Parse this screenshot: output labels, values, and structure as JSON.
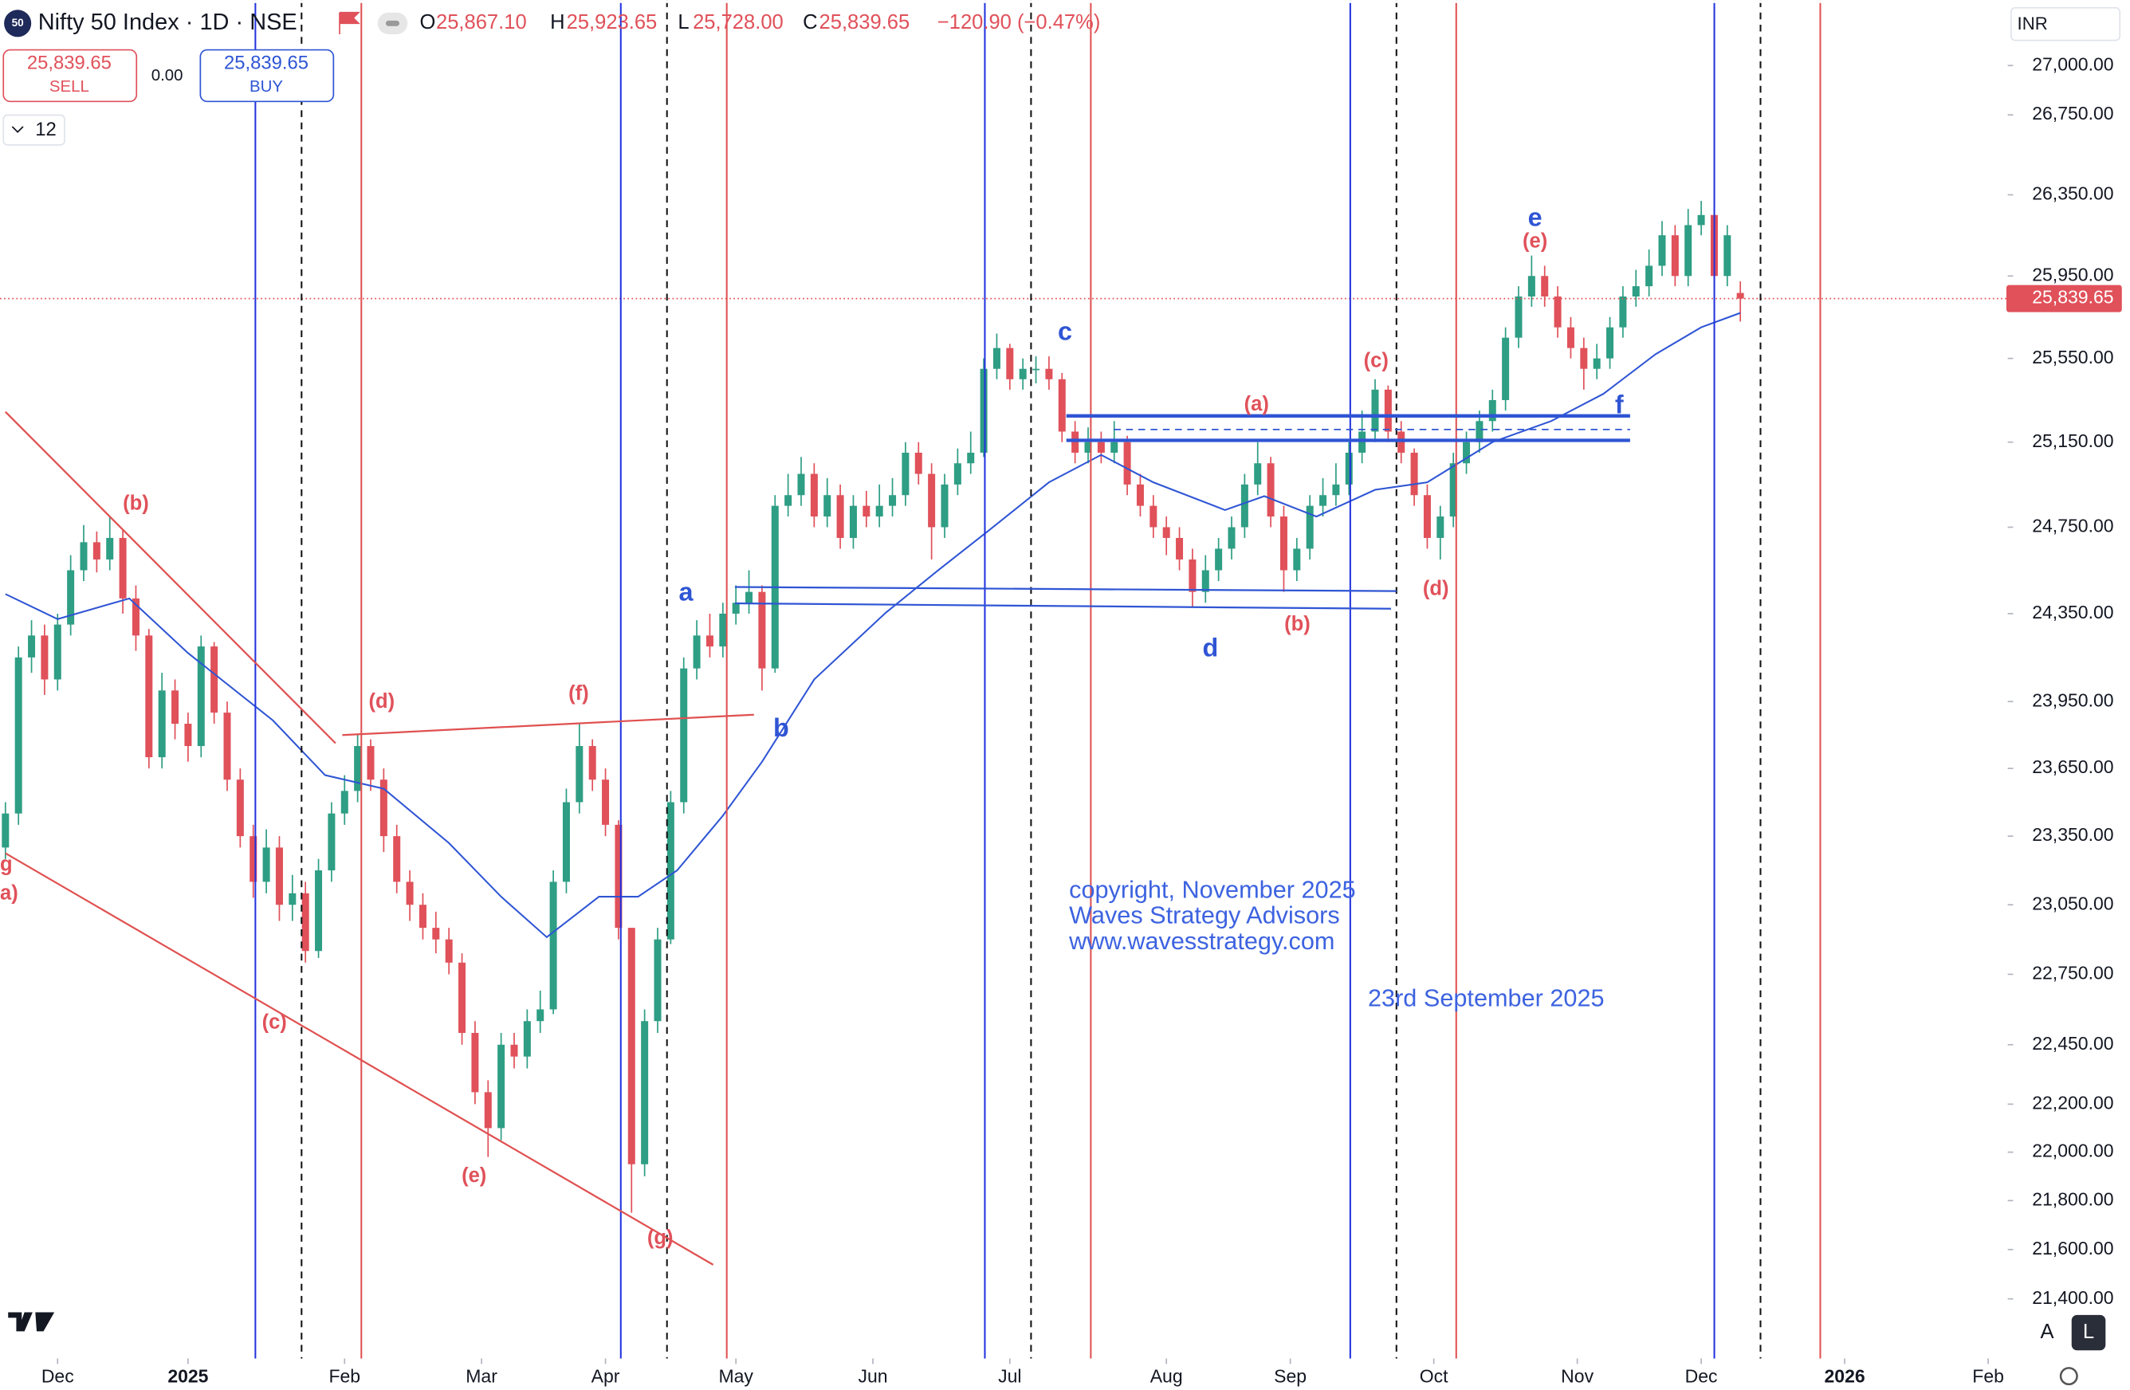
{
  "header": {
    "badge": "50",
    "symbol": "Nifty 50 Index · 1D · NSE",
    "ohlc_labels": [
      "O",
      "H",
      "L",
      "C"
    ],
    "ohlc_values": [
      "25,867.10",
      "25,923.65",
      "25,728.00",
      "25,839.65"
    ],
    "change": "−120.90 (−0.47%)"
  },
  "trade_panel": {
    "sell_price": "25,839.65",
    "sell": "SELL",
    "spread": "0.00",
    "buy_price": "25,839.65",
    "buy": "BUY",
    "interval": "12"
  },
  "currency": "INR",
  "scale_buttons": [
    "A",
    "L"
  ],
  "wave_labels_red": [
    "(b)",
    "(d)",
    "(f)",
    "(c)",
    "(e)",
    "(g)",
    "g",
    "a)",
    "(a)",
    "(b)",
    "(c)",
    "(d)",
    "(e)"
  ],
  "wave_labels_blue": [
    "a",
    "b",
    "c",
    "d",
    "e",
    "f"
  ],
  "copyright": [
    "copyright, November 2025",
    "Waves Strategy Advisors",
    "www.wavesstrategy.com"
  ],
  "date_note": "23rd September 2025",
  "chart_data": {
    "type": "candlestick",
    "log_scale": true,
    "grid": false,
    "up_color": "#2e9e84",
    "down_color": "#e0515a",
    "ylim": [
      21161,
      27334
    ],
    "yticks": [
      {
        "value": 27000,
        "label": "27,000.00"
      },
      {
        "value": 26750,
        "label": "26,750.00"
      },
      {
        "value": 26350,
        "label": "26,350.00"
      },
      {
        "value": 25950,
        "label": "25,950.00"
      },
      {
        "value": 25550,
        "label": "25,550.00"
      },
      {
        "value": 25150,
        "label": "25,150.00"
      },
      {
        "value": 24750,
        "label": "24,750.00"
      },
      {
        "value": 24350,
        "label": "24,350.00"
      },
      {
        "value": 23950,
        "label": "23,950.00"
      },
      {
        "value": 23650,
        "label": "23,650.00"
      },
      {
        "value": 23350,
        "label": "23,350.00"
      },
      {
        "value": 23050,
        "label": "23,050.00"
      },
      {
        "value": 22750,
        "label": "22,750.00"
      },
      {
        "value": 22450,
        "label": "22,450.00"
      },
      {
        "value": 22200,
        "label": "22,200.00"
      },
      {
        "value": 22000,
        "label": "22,000.00"
      },
      {
        "value": 21800,
        "label": "21,800.00"
      },
      {
        "value": 21600,
        "label": "21,600.00"
      },
      {
        "value": 21400,
        "label": "21,400.00"
      }
    ],
    "xlim": [
      0,
      307
    ],
    "xticks": [
      {
        "value": 8,
        "label": "Dec"
      },
      {
        "value": 28,
        "label": "2025"
      },
      {
        "value": 52,
        "label": "Feb"
      },
      {
        "value": 73,
        "label": "Mar"
      },
      {
        "value": 92,
        "label": "Apr"
      },
      {
        "value": 112,
        "label": "May"
      },
      {
        "value": 133,
        "label": "Jun"
      },
      {
        "value": 154,
        "label": "Jul"
      },
      {
        "value": 178,
        "label": "Aug"
      },
      {
        "value": 197,
        "label": "Sep"
      },
      {
        "value": 219,
        "label": "Oct"
      },
      {
        "value": 241,
        "label": "Nov"
      },
      {
        "value": 260,
        "label": "Dec"
      },
      {
        "value": 282,
        "label": "2026"
      },
      {
        "value": 304,
        "label": "Feb"
      }
    ],
    "x": [
      0,
      2,
      4,
      6,
      8,
      10,
      12,
      14,
      16,
      18,
      20,
      22,
      24,
      26,
      28,
      30,
      32,
      34,
      36,
      38,
      40,
      42,
      44,
      46,
      48,
      50,
      52,
      54,
      56,
      58,
      60,
      62,
      64,
      66,
      68,
      70,
      72,
      74,
      76,
      78,
      80,
      82,
      84,
      86,
      88,
      90,
      92,
      94,
      96,
      98,
      100,
      102,
      104,
      106,
      108,
      110,
      112,
      114,
      116,
      118,
      120,
      122,
      124,
      126,
      128,
      130,
      132,
      134,
      136,
      138,
      140,
      142,
      144,
      146,
      148,
      150,
      152,
      154,
      156,
      158,
      160,
      162,
      164,
      166,
      168,
      170,
      172,
      174,
      176,
      178,
      180,
      182,
      184,
      186,
      188,
      190,
      192,
      194,
      196,
      198,
      200,
      202,
      204,
      206,
      208,
      210,
      212,
      214,
      216,
      218,
      220,
      222,
      224,
      226,
      228,
      230,
      232,
      234,
      236,
      238,
      240,
      242,
      244,
      246,
      248,
      250,
      252,
      254,
      256,
      258,
      260,
      262,
      264,
      266
    ],
    "ohlc": [
      [
        23300,
        23500,
        23250,
        23450
      ],
      [
        23450,
        24200,
        23400,
        24150
      ],
      [
        24150,
        24320,
        24080,
        24250
      ],
      [
        24250,
        24300,
        23980,
        24050
      ],
      [
        24050,
        24350,
        24000,
        24300
      ],
      [
        24300,
        24620,
        24250,
        24550
      ],
      [
        24550,
        24760,
        24500,
        24680
      ],
      [
        24680,
        24730,
        24540,
        24600
      ],
      [
        24600,
        24800,
        24550,
        24700
      ],
      [
        24700,
        24740,
        24350,
        24420
      ],
      [
        24420,
        24480,
        24180,
        24250
      ],
      [
        24250,
        24280,
        23650,
        23700
      ],
      [
        23700,
        24080,
        23650,
        24000
      ],
      [
        24000,
        24050,
        23780,
        23850
      ],
      [
        23850,
        23900,
        23680,
        23750
      ],
      [
        23750,
        24250,
        23700,
        24200
      ],
      [
        24200,
        24220,
        23850,
        23900
      ],
      [
        23900,
        23950,
        23550,
        23600
      ],
      [
        23600,
        23650,
        23300,
        23350
      ],
      [
        23350,
        23400,
        23080,
        23150
      ],
      [
        23150,
        23380,
        23100,
        23300
      ],
      [
        23300,
        23350,
        22980,
        23050
      ],
      [
        23050,
        23180,
        22980,
        23100
      ],
      [
        23100,
        23150,
        22800,
        22850
      ],
      [
        22850,
        23250,
        22820,
        23200
      ],
      [
        23200,
        23500,
        23150,
        23450
      ],
      [
        23450,
        23620,
        23400,
        23550
      ],
      [
        23550,
        23800,
        23500,
        23750
      ],
      [
        23750,
        23780,
        23550,
        23600
      ],
      [
        23600,
        23650,
        23280,
        23350
      ],
      [
        23350,
        23400,
        23100,
        23150
      ],
      [
        23150,
        23200,
        22980,
        23050
      ],
      [
        23050,
        23100,
        22900,
        22950
      ],
      [
        22950,
        23020,
        22840,
        22900
      ],
      [
        22900,
        22950,
        22750,
        22800
      ],
      [
        22800,
        22840,
        22450,
        22500
      ],
      [
        22500,
        22550,
        22200,
        22250
      ],
      [
        22250,
        22300,
        21980,
        22100
      ],
      [
        22100,
        22500,
        22050,
        22450
      ],
      [
        22450,
        22500,
        22350,
        22400
      ],
      [
        22400,
        22600,
        22350,
        22550
      ],
      [
        22550,
        22680,
        22500,
        22600
      ],
      [
        22600,
        23200,
        22580,
        23150
      ],
      [
        23150,
        23560,
        23100,
        23500
      ],
      [
        23500,
        23850,
        23450,
        23750
      ],
      [
        23750,
        23780,
        23550,
        23600
      ],
      [
        23600,
        23650,
        23350,
        23400
      ],
      [
        23400,
        23420,
        22900,
        22950
      ],
      [
        22950,
        22950,
        21750,
        21950
      ],
      [
        21950,
        22600,
        21900,
        22550
      ],
      [
        22550,
        22950,
        22500,
        22900
      ],
      [
        22900,
        23550,
        22880,
        23500
      ],
      [
        23500,
        24150,
        23450,
        24100
      ],
      [
        24100,
        24320,
        24050,
        24250
      ],
      [
        24250,
        24350,
        24150,
        24200
      ],
      [
        24200,
        24400,
        24150,
        24350
      ],
      [
        24350,
        24480,
        24300,
        24400
      ],
      [
        24400,
        24550,
        24350,
        24450
      ],
      [
        24450,
        24480,
        24000,
        24100
      ],
      [
        24100,
        24900,
        24080,
        24850
      ],
      [
        24850,
        25000,
        24800,
        24900
      ],
      [
        24900,
        25080,
        24850,
        25000
      ],
      [
        25000,
        25050,
        24750,
        24800
      ],
      [
        24800,
        24980,
        24750,
        24900
      ],
      [
        24900,
        24950,
        24650,
        24700
      ],
      [
        24700,
        24900,
        24650,
        24850
      ],
      [
        24850,
        24920,
        24750,
        24800
      ],
      [
        24800,
        24950,
        24750,
        24850
      ],
      [
        24850,
        24980,
        24800,
        24900
      ],
      [
        24900,
        25150,
        24850,
        25100
      ],
      [
        25100,
        25150,
        24950,
        25000
      ],
      [
        25000,
        25050,
        24600,
        24750
      ],
      [
        24750,
        25000,
        24700,
        24950
      ],
      [
        24950,
        25120,
        24900,
        25050
      ],
      [
        25050,
        25200,
        25000,
        25100
      ],
      [
        25100,
        25550,
        25080,
        25500
      ],
      [
        25500,
        25670,
        25450,
        25600
      ],
      [
        25600,
        25620,
        25400,
        25450
      ],
      [
        25450,
        25550,
        25400,
        25500
      ],
      [
        25500,
        25560,
        25430,
        25500
      ],
      [
        25500,
        25560,
        25400,
        25450
      ],
      [
        25450,
        25480,
        25150,
        25200
      ],
      [
        25200,
        25250,
        25050,
        25100
      ],
      [
        25100,
        25220,
        25050,
        25150
      ],
      [
        25150,
        25200,
        25050,
        25100
      ],
      [
        25100,
        25250,
        25050,
        25150
      ],
      [
        25150,
        25180,
        24900,
        24950
      ],
      [
        24950,
        25000,
        24800,
        24850
      ],
      [
        24850,
        24900,
        24700,
        24750
      ],
      [
        24750,
        24800,
        24620,
        24700
      ],
      [
        24700,
        24750,
        24550,
        24600
      ],
      [
        24600,
        24650,
        24380,
        24450
      ],
      [
        24450,
        24620,
        24400,
        24550
      ],
      [
        24550,
        24700,
        24500,
        24650
      ],
      [
        24650,
        24800,
        24600,
        24750
      ],
      [
        24750,
        25000,
        24700,
        24950
      ],
      [
        24950,
        25150,
        24900,
        25050
      ],
      [
        25050,
        25080,
        24750,
        24800
      ],
      [
        24800,
        24850,
        24450,
        24550
      ],
      [
        24550,
        24700,
        24500,
        24650
      ],
      [
        24650,
        24900,
        24600,
        24850
      ],
      [
        24850,
        24980,
        24800,
        24900
      ],
      [
        24900,
        25050,
        24850,
        24950
      ],
      [
        24950,
        25150,
        24900,
        25100
      ],
      [
        25100,
        25300,
        25050,
        25200
      ],
      [
        25200,
        25450,
        25150,
        25400
      ],
      [
        25400,
        25420,
        25150,
        25200
      ],
      [
        25200,
        25250,
        25050,
        25100
      ],
      [
        25100,
        25120,
        24850,
        24900
      ],
      [
        24900,
        24950,
        24650,
        24700
      ],
      [
        24700,
        24850,
        24600,
        24800
      ],
      [
        24800,
        25100,
        24750,
        25050
      ],
      [
        25050,
        25200,
        25000,
        25150
      ],
      [
        25150,
        25300,
        25100,
        25250
      ],
      [
        25250,
        25400,
        25200,
        25350
      ],
      [
        25350,
        25700,
        25300,
        25650
      ],
      [
        25650,
        25900,
        25600,
        25850
      ],
      [
        25850,
        26050,
        25800,
        25950
      ],
      [
        25950,
        26000,
        25800,
        25850
      ],
      [
        25850,
        25900,
        25650,
        25700
      ],
      [
        25700,
        25750,
        25550,
        25600
      ],
      [
        25600,
        25650,
        25400,
        25500
      ],
      [
        25500,
        25620,
        25450,
        25550
      ],
      [
        25550,
        25750,
        25500,
        25700
      ],
      [
        25700,
        25900,
        25650,
        25850
      ],
      [
        25850,
        25980,
        25800,
        25900
      ],
      [
        25900,
        26080,
        25850,
        26000
      ],
      [
        26000,
        26220,
        25950,
        26150
      ],
      [
        26150,
        26200,
        25900,
        25950
      ],
      [
        25950,
        26280,
        25900,
        26200
      ],
      [
        26200,
        26320,
        26150,
        26250
      ],
      [
        26250,
        26280,
        25900,
        25950
      ],
      [
        25950,
        26200,
        25900,
        26150
      ],
      [
        25867.1,
        25923.65,
        25728,
        25839.65
      ]
    ],
    "ema": {
      "color": "#2f55d4",
      "x": [
        0,
        8,
        19,
        28,
        41,
        49,
        58,
        68,
        76,
        83,
        91,
        97,
        103,
        110,
        116,
        124,
        135,
        143,
        151,
        160,
        168,
        176,
        187,
        193,
        201,
        210,
        218,
        228,
        237,
        245,
        253,
        260,
        266
      ],
      "values": [
        24440,
        24325,
        24420,
        24170,
        23865,
        23620,
        23560,
        23320,
        23085,
        22910,
        23085,
        23085,
        23200,
        23440,
        23680,
        24050,
        24355,
        24550,
        24740,
        24960,
        25090,
        24960,
        24830,
        24895,
        24800,
        24925,
        24960,
        25150,
        25250,
        25380,
        25570,
        25700,
        25770
      ]
    },
    "last_price": 25839.65,
    "last_price_label": "25,839.65",
    "last_price_color": "#e0515a"
  }
}
